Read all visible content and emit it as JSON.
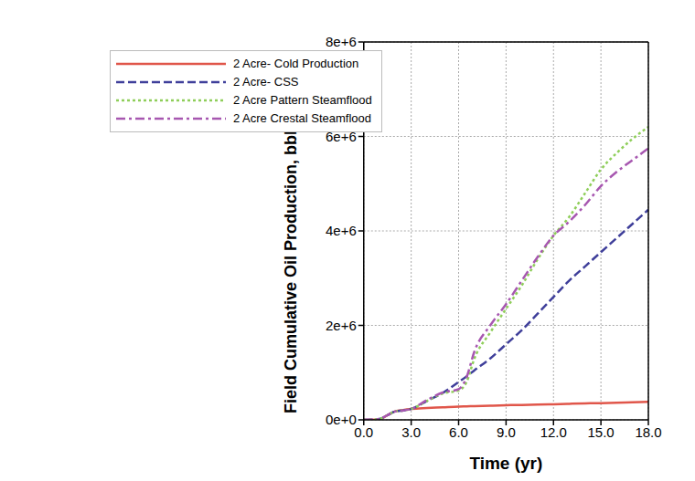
{
  "chart_data": {
    "type": "line",
    "x_label": "Time (yr)",
    "y_label": "Field Cumulative Oil Production, bbls (bbl)",
    "x": [
      0,
      1,
      1.5,
      2,
      2.5,
      3,
      4,
      5,
      6,
      6.5,
      7,
      8,
      9,
      10,
      11,
      12,
      13,
      14,
      15,
      16,
      17,
      18
    ],
    "series": [
      {
        "name": "2 Acre- Cold Production",
        "color": "#e0564a",
        "line_style": "solid",
        "values": [
          0,
          10000,
          100000,
          180000,
          210000,
          230000,
          250000,
          265000,
          280000,
          285000,
          290000,
          300000,
          310000,
          315000,
          325000,
          330000,
          340000,
          350000,
          355000,
          360000,
          370000,
          380000
        ]
      },
      {
        "name": "2 Acre- CSS",
        "color": "#3f3f9a",
        "line_style": "dashed",
        "values": [
          0,
          20000,
          100000,
          180000,
          200000,
          230000,
          400000,
          570000,
          800000,
          920000,
          1050000,
          1300000,
          1600000,
          1900000,
          2250000,
          2600000,
          2950000,
          3250000,
          3550000,
          3850000,
          4150000,
          4450000
        ]
      },
      {
        "name": "2 Acre Pattern Steamflood",
        "color": "#8fce5a",
        "line_style": "dotted",
        "values": [
          0,
          20000,
          100000,
          180000,
          200000,
          230000,
          400000,
          560000,
          620000,
          800000,
          1300000,
          1850000,
          2350000,
          2850000,
          3400000,
          3900000,
          4300000,
          4800000,
          5300000,
          5650000,
          5950000,
          6200000
        ]
      },
      {
        "name": "2 Acre Crestal Steamflood",
        "color": "#a757b0",
        "line_style": "dashdot",
        "values": [
          0,
          20000,
          100000,
          180000,
          200000,
          230000,
          420000,
          580000,
          650000,
          900000,
          1450000,
          2000000,
          2450000,
          2950000,
          3450000,
          3900000,
          4200000,
          4550000,
          4950000,
          5250000,
          5500000,
          5750000
        ]
      }
    ],
    "xlim": [
      0,
      18
    ],
    "xticks": [
      {
        "value": 0,
        "label": "0.0"
      },
      {
        "value": 3,
        "label": "3.0"
      },
      {
        "value": 6,
        "label": "6.0"
      },
      {
        "value": 9,
        "label": "9.0"
      },
      {
        "value": 12,
        "label": "12.0"
      },
      {
        "value": 15,
        "label": "15.0"
      },
      {
        "value": 18,
        "label": "18.0"
      }
    ],
    "ylim": [
      0,
      8000000
    ],
    "yticks": [
      {
        "value": 0,
        "label": "0e+0"
      },
      {
        "value": 2000000,
        "label": "2e+6"
      },
      {
        "value": 4000000,
        "label": "4e+6"
      },
      {
        "value": 6000000,
        "label": "6e+6"
      },
      {
        "value": 8000000,
        "label": "8e+6"
      }
    ],
    "grid": true,
    "legend": "upper left"
  }
}
